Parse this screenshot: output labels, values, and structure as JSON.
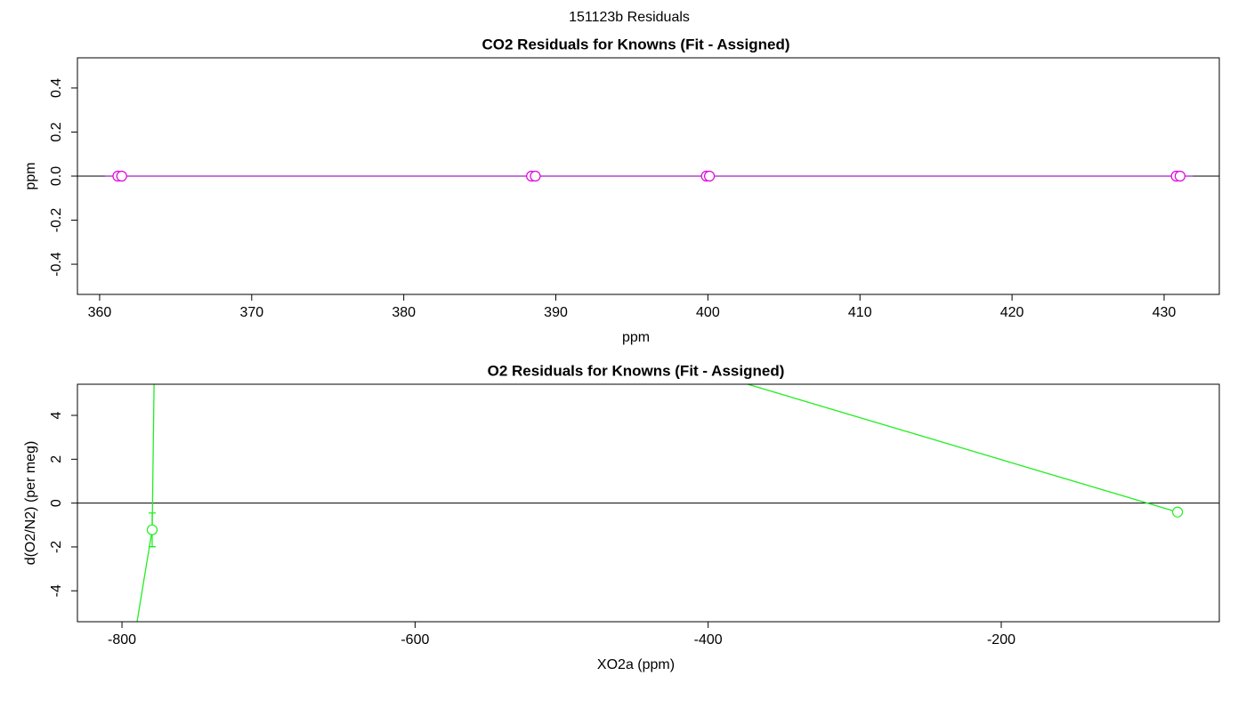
{
  "title": "151123b  Residuals",
  "chart_data": [
    {
      "type": "scatter",
      "title": "CO2 Residuals for Knowns (Fit - Assigned)",
      "xlabel": "ppm",
      "ylabel": "ppm",
      "xlim": [
        358.54,
        433.63
      ],
      "ylim": [
        -0.537,
        0.537
      ],
      "xticks": [
        360,
        370,
        380,
        390,
        400,
        410,
        420,
        430
      ],
      "yticks": [
        -0.4,
        -0.2,
        {
          "value": 0,
          "label": "0.0"
        },
        0.2,
        0.4
      ],
      "hline": 0,
      "series": [
        {
          "mode": "line",
          "color": "#a020c0",
          "x": [
            360.35,
            431.9
          ],
          "values": [
            0,
            0
          ]
        },
        {
          "mode": "markers",
          "color": "#e000e0",
          "x": [
            361.2,
            361.45,
            388.4,
            388.65,
            399.9,
            400.1,
            430.8,
            431.05
          ],
          "values": [
            0,
            0,
            0,
            0,
            0,
            0,
            0,
            0
          ]
        }
      ]
    },
    {
      "type": "scatter",
      "title": "O2 Residuals for Knowns (Fit - Assigned)",
      "xlabel": "XO2a (ppm)",
      "ylabel": "d(O2/N2) (per meg)",
      "xlim": [
        -830.4,
        -51.2
      ],
      "ylim": [
        -5.41,
        5.42
      ],
      "xticks": [
        -800,
        -600,
        -400,
        -200
      ],
      "yticks": [
        -4,
        -2,
        0,
        2,
        4
      ],
      "hline": 0,
      "series": [
        {
          "mode": "line",
          "color": "#22ee22",
          "x": [
            -789.7,
            -779.4,
            -778.1
          ],
          "values": [
            -5.41,
            -1.22,
            5.42
          ]
        },
        {
          "mode": "line",
          "color": "#22ee22",
          "x": [
            -373.0,
            -79.7
          ],
          "values": [
            5.42,
            -0.41
          ]
        },
        {
          "mode": "markers",
          "color": "#22ee22",
          "x": [
            -779.4,
            -79.7
          ],
          "values": [
            -1.22,
            -0.41
          ],
          "errors": [
            0.77,
            null
          ]
        }
      ]
    }
  ]
}
